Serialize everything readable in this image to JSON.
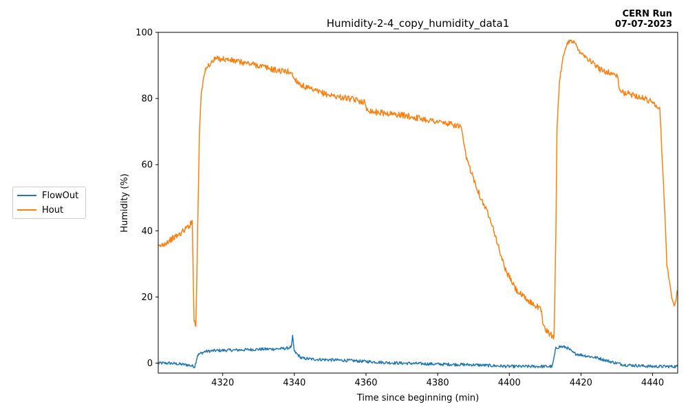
{
  "chart_data": {
    "type": "line",
    "title": "Humidity-2-4_copy_humidity_data1",
    "xlabel": "Time since beginning (min)",
    "ylabel": "Humidity (%)",
    "xlim": [
      4302,
      4447
    ],
    "ylim": [
      -3,
      100
    ],
    "xticks": [
      4320,
      4340,
      4360,
      4380,
      4400,
      4420,
      4440
    ],
    "yticks": [
      0,
      20,
      40,
      60,
      80,
      100
    ],
    "grid": false,
    "legend_placement": "left-outside",
    "annotation": {
      "line1": "CERN Run",
      "line2": "07-07-2023"
    },
    "series": [
      {
        "name": "FlowOut",
        "color": "#1f77b4",
        "points": [
          [
            4302,
            0
          ],
          [
            4305,
            0
          ],
          [
            4310,
            -0.5
          ],
          [
            4312.2,
            -1
          ],
          [
            4313,
            2.5
          ],
          [
            4315,
            3.5
          ],
          [
            4318,
            3.8
          ],
          [
            4325,
            4
          ],
          [
            4330,
            4.2
          ],
          [
            4335,
            4.3
          ],
          [
            4338,
            4.5
          ],
          [
            4339.2,
            5
          ],
          [
            4339.5,
            8
          ],
          [
            4340,
            3.5
          ],
          [
            4342,
            1.5
          ],
          [
            4345,
            1.2
          ],
          [
            4350,
            1
          ],
          [
            4355,
            0.8
          ],
          [
            4360,
            0.5
          ],
          [
            4365,
            0.2
          ],
          [
            4370,
            0
          ],
          [
            4380,
            -0.3
          ],
          [
            4390,
            -0.5
          ],
          [
            4400,
            -1
          ],
          [
            4405,
            -1
          ],
          [
            4408,
            -1
          ],
          [
            4412,
            -1
          ],
          [
            4413,
            4.5
          ],
          [
            4414,
            5
          ],
          [
            4416,
            4.8
          ],
          [
            4418,
            3
          ],
          [
            4420,
            2.5
          ],
          [
            4425,
            1.5
          ],
          [
            4428,
            0.5
          ],
          [
            4432,
            -0.5
          ],
          [
            4440,
            -1
          ],
          [
            4447,
            -1
          ]
        ]
      },
      {
        "name": "Hout",
        "color": "#ff7f0e",
        "points": [
          [
            4302,
            35
          ],
          [
            4305,
            37
          ],
          [
            4308,
            39
          ],
          [
            4311,
            42
          ],
          [
            4311.5,
            43
          ],
          [
            4312,
            13
          ],
          [
            4312.5,
            11
          ],
          [
            4313,
            40
          ],
          [
            4313.5,
            70
          ],
          [
            4314,
            82
          ],
          [
            4315,
            88
          ],
          [
            4316,
            90
          ],
          [
            4318,
            92
          ],
          [
            4320,
            92
          ],
          [
            4325,
            91
          ],
          [
            4330,
            90
          ],
          [
            4335,
            88.5
          ],
          [
            4339,
            88
          ],
          [
            4340,
            86
          ],
          [
            4342,
            84
          ],
          [
            4345,
            82.5
          ],
          [
            4350,
            81
          ],
          [
            4355,
            80
          ],
          [
            4359.5,
            79
          ],
          [
            4360,
            77
          ],
          [
            4362,
            76
          ],
          [
            4370,
            75
          ],
          [
            4380,
            73
          ],
          [
            4386.5,
            71.5
          ],
          [
            4387,
            68
          ],
          [
            4388,
            62
          ],
          [
            4390,
            56
          ],
          [
            4392,
            50
          ],
          [
            4395,
            43
          ],
          [
            4397,
            35
          ],
          [
            4399,
            28
          ],
          [
            4402,
            22
          ],
          [
            4405,
            19
          ],
          [
            4408,
            17
          ],
          [
            4409,
            16
          ],
          [
            4409.5,
            11
          ],
          [
            4411,
            9
          ],
          [
            4412.5,
            8
          ],
          [
            4413,
            40
          ],
          [
            4413.3,
            70
          ],
          [
            4414,
            85
          ],
          [
            4415,
            92
          ],
          [
            4416,
            96
          ],
          [
            4417,
            98
          ],
          [
            4418,
            97
          ],
          [
            4420,
            94
          ],
          [
            4425,
            89
          ],
          [
            4430,
            87
          ],
          [
            4431,
            82
          ],
          [
            4435,
            81
          ],
          [
            4440,
            79
          ],
          [
            4442,
            77
          ],
          [
            4443,
            55
          ],
          [
            4444,
            30
          ],
          [
            4445,
            22
          ],
          [
            4446,
            17
          ],
          [
            4447,
            22
          ]
        ]
      }
    ]
  }
}
